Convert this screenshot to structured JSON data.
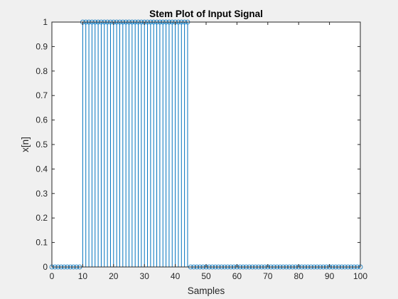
{
  "chart_data": {
    "type": "stem",
    "title": "Stem Plot of Input Signal",
    "xlabel": "Samples",
    "ylabel": "x[n]",
    "xlim": [
      0,
      100
    ],
    "ylim": [
      0,
      1
    ],
    "xticks": [
      0,
      10,
      20,
      30,
      40,
      50,
      60,
      70,
      80,
      90,
      100
    ],
    "yticks": [
      0,
      0.1,
      0.2,
      0.3,
      0.4,
      0.5,
      0.6,
      0.7,
      0.8,
      0.9,
      1
    ],
    "grid": false,
    "series": [
      {
        "color": "#0072bd",
        "marker": "open-circle",
        "x_range": [
          0,
          100
        ],
        "step": 1,
        "value_one_range": [
          10,
          44
        ],
        "value_inside": 1,
        "value_outside": 0
      }
    ]
  }
}
